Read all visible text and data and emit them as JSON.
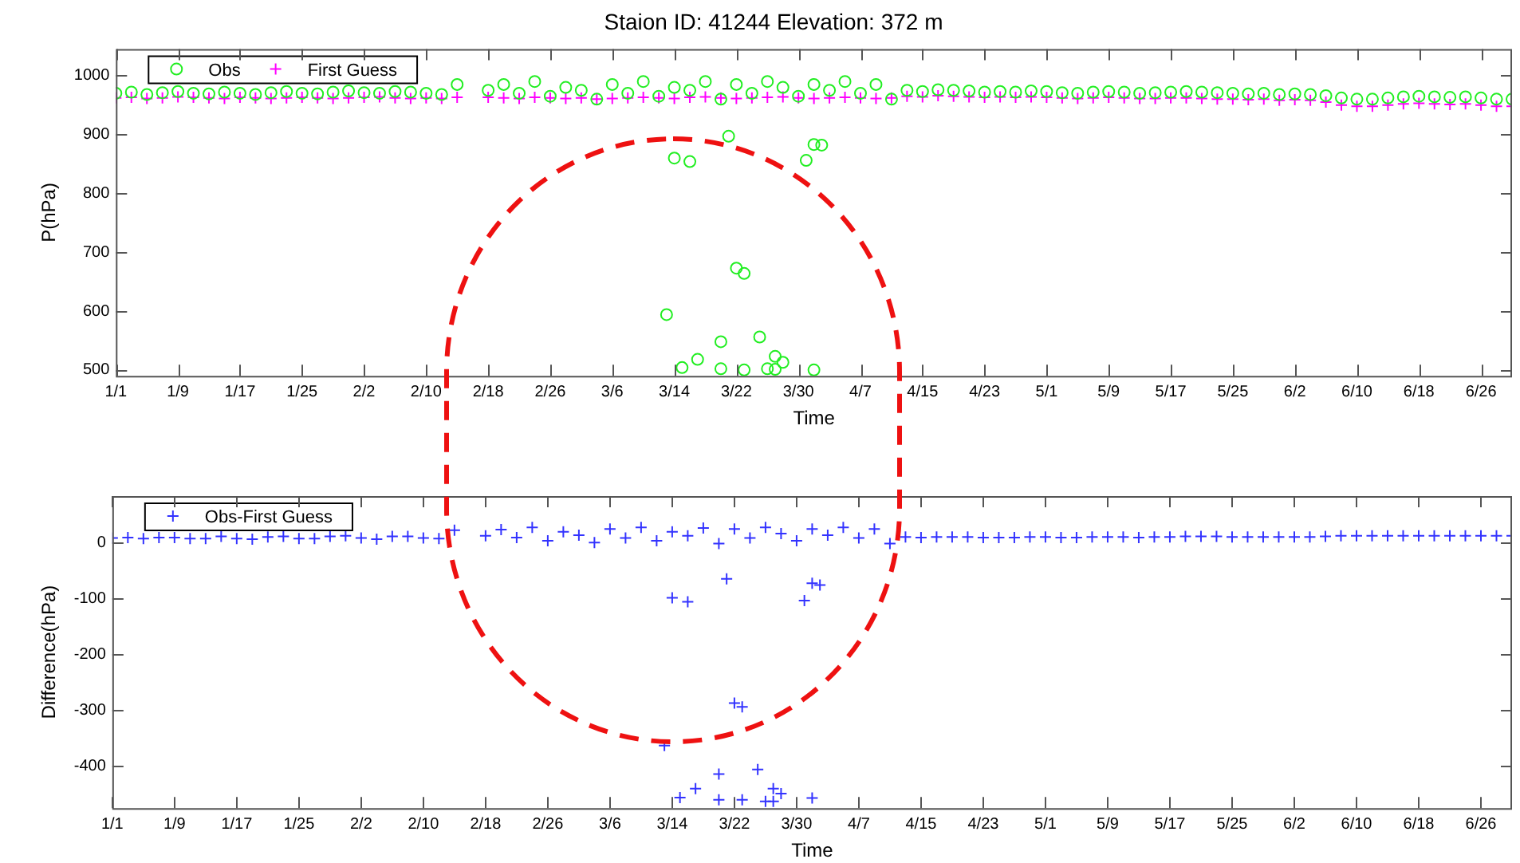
{
  "chart_data": [
    {
      "type": "scatter",
      "title": "Staion ID: 41244 Elevation: 372 m",
      "xlabel": "Time",
      "ylabel": "P(hPa)",
      "legend": "top left",
      "grid": false,
      "xlim": [
        "--01-01",
        "--06-30"
      ],
      "xticks": [
        {
          "value": "--01-01",
          "label": "1/1"
        },
        {
          "value": "--01-09",
          "label": "1/9"
        },
        {
          "value": "--01-17",
          "label": "1/17"
        },
        {
          "value": "--01-25",
          "label": "1/25"
        },
        {
          "value": "--02-02",
          "label": "2/2"
        },
        {
          "value": "--02-10",
          "label": "2/10"
        },
        {
          "value": "--02-18",
          "label": "2/18"
        },
        {
          "value": "--02-26",
          "label": "2/26"
        },
        {
          "value": "--03-06",
          "label": "3/6"
        },
        {
          "value": "--03-14",
          "label": "3/14"
        },
        {
          "value": "--03-22",
          "label": "3/22"
        },
        {
          "value": "--03-30",
          "label": "3/30"
        },
        {
          "value": "--04-07",
          "label": "4/7"
        },
        {
          "value": "--04-15",
          "label": "4/15"
        },
        {
          "value": "--04-23",
          "label": "4/23"
        },
        {
          "value": "--05-01",
          "label": "5/1"
        },
        {
          "value": "--05-09",
          "label": "5/9"
        },
        {
          "value": "--05-17",
          "label": "5/17"
        },
        {
          "value": "--05-25",
          "label": "5/25"
        },
        {
          "value": "--06-02",
          "label": "6/2"
        },
        {
          "value": "--06-10",
          "label": "6/10"
        },
        {
          "value": "--06-18",
          "label": "6/18"
        },
        {
          "value": "--06-26",
          "label": "6/26"
        }
      ],
      "ylim": [
        490,
        1045
      ],
      "yticks": [
        500,
        600,
        700,
        800,
        900,
        1000
      ],
      "series": [
        {
          "name": "Obs",
          "color": "#22ee22",
          "marker": "circle",
          "x": [
            "--01-01",
            "--01-03",
            "--01-05",
            "--01-07",
            "--01-09",
            "--01-11",
            "--01-13",
            "--01-15",
            "--01-17",
            "--01-19",
            "--01-21",
            "--01-23",
            "--01-25",
            "--01-27",
            "--01-29",
            "--01-31",
            "--02-02",
            "--02-04",
            "--02-06",
            "--02-08",
            "--02-10",
            "--02-12",
            "--02-14",
            "--02-18",
            "--02-20",
            "--02-22",
            "--02-24",
            "--02-26",
            "--02-28",
            "--03-02",
            "--03-04",
            "--03-06",
            "--03-08",
            "--03-10",
            "--03-12",
            "--03-14",
            "--03-16",
            "--03-18",
            "--03-20",
            "--03-22",
            "--03-24",
            "--03-26",
            "--03-28",
            "--03-30",
            "--04-01",
            "--04-03",
            "--04-05",
            "--04-07",
            "--04-09",
            "--04-11",
            "--04-13",
            "--04-15",
            "--04-17",
            "--04-19",
            "--04-21",
            "--04-23",
            "--04-25",
            "--04-27",
            "--04-29",
            "--05-01",
            "--05-03",
            "--05-05",
            "--05-07",
            "--05-09",
            "--05-11",
            "--05-13",
            "--05-15",
            "--05-17",
            "--05-19",
            "--05-21",
            "--05-23",
            "--05-25",
            "--05-27",
            "--05-29",
            "--05-31",
            "--06-02",
            "--06-04",
            "--06-06",
            "--06-08",
            "--06-10",
            "--06-12",
            "--06-14",
            "--06-16",
            "--06-18",
            "--06-20",
            "--06-22",
            "--06-24",
            "--06-26",
            "--06-28",
            "--06-30",
            "--03-14",
            "--03-16",
            "--03-21",
            "--03-31",
            "--04-01",
            "--04-02",
            "--03-22",
            "--03-23",
            "--03-13",
            "--03-20",
            "--03-25",
            "--03-15",
            "--03-17",
            "--03-20",
            "--03-23",
            "--03-26",
            "--03-27",
            "--03-27",
            "--03-28",
            "--04-01"
          ],
          "values": [
            970,
            972,
            968,
            971,
            973,
            970,
            969,
            972,
            970,
            968,
            971,
            973,
            970,
            969,
            972,
            974,
            971,
            970,
            973,
            972,
            970,
            968,
            985,
            975,
            985,
            970,
            990,
            965,
            980,
            975,
            960,
            985,
            970,
            990,
            965,
            980,
            975,
            990,
            960,
            985,
            970,
            990,
            980,
            965,
            985,
            975,
            990,
            970,
            985,
            960,
            975,
            973,
            976,
            975,
            974,
            972,
            973,
            972,
            974,
            973,
            971,
            970,
            972,
            973,
            972,
            970,
            971,
            972,
            973,
            972,
            971,
            970,
            969,
            970,
            968,
            969,
            968,
            966,
            962,
            960,
            960,
            962,
            964,
            965,
            964,
            963,
            964,
            962,
            960,
            960,
            860,
            854,
            897,
            856,
            883,
            882,
            673,
            664,
            594,
            548,
            556,
            504,
            518,
            502,
            500,
            502,
            501,
            523,
            513,
            500
          ]
        },
        {
          "name": "First Guess",
          "color": "#ff00ff",
          "marker": "cross",
          "x": [
            "--01-01",
            "--01-03",
            "--01-05",
            "--01-07",
            "--01-09",
            "--01-11",
            "--01-13",
            "--01-15",
            "--01-17",
            "--01-19",
            "--01-21",
            "--01-23",
            "--01-25",
            "--01-27",
            "--01-29",
            "--01-31",
            "--02-02",
            "--02-04",
            "--02-06",
            "--02-08",
            "--02-10",
            "--02-12",
            "--02-14",
            "--02-18",
            "--02-20",
            "--02-22",
            "--02-24",
            "--02-26",
            "--02-28",
            "--03-02",
            "--03-04",
            "--03-06",
            "--03-08",
            "--03-10",
            "--03-12",
            "--03-14",
            "--03-16",
            "--03-18",
            "--03-20",
            "--03-22",
            "--03-24",
            "--03-26",
            "--03-28",
            "--03-30",
            "--04-01",
            "--04-03",
            "--04-05",
            "--04-07",
            "--04-09",
            "--04-11",
            "--04-13",
            "--04-15",
            "--04-17",
            "--04-19",
            "--04-21",
            "--04-23",
            "--04-25",
            "--04-27",
            "--04-29",
            "--05-01",
            "--05-03",
            "--05-05",
            "--05-07",
            "--05-09",
            "--05-11",
            "--05-13",
            "--05-15",
            "--05-17",
            "--05-19",
            "--05-21",
            "--05-23",
            "--05-25",
            "--05-27",
            "--05-29",
            "--05-31",
            "--06-02",
            "--06-04",
            "--06-06",
            "--06-08",
            "--06-10",
            "--06-12",
            "--06-14",
            "--06-16",
            "--06-18",
            "--06-20",
            "--06-22",
            "--06-24",
            "--06-26",
            "--06-28",
            "--06-30"
          ],
          "values": [
            962,
            963,
            961,
            962,
            964,
            963,
            962,
            961,
            963,
            962,
            961,
            962,
            963,
            962,
            961,
            962,
            963,
            964,
            962,
            961,
            962,
            961,
            963,
            963,
            962,
            961,
            963,
            962,
            961,
            962,
            960,
            961,
            962,
            963,
            962,
            961,
            963,
            964,
            962,
            961,
            962,
            963,
            964,
            962,
            961,
            962,
            963,
            962,
            961,
            962,
            965,
            964,
            966,
            965,
            964,
            963,
            964,
            963,
            964,
            963,
            962,
            961,
            962,
            963,
            962,
            961,
            961,
            962,
            962,
            961,
            960,
            960,
            959,
            960,
            958,
            959,
            958,
            955,
            950,
            948,
            948,
            950,
            952,
            953,
            952,
            951,
            952,
            950,
            948,
            948
          ]
        }
      ]
    },
    {
      "type": "scatter",
      "xlabel": "Time",
      "ylabel": "Difference(hPa)",
      "legend": "top left",
      "grid": false,
      "xlim": [
        "--01-01",
        "--06-30"
      ],
      "xticks": [
        {
          "value": "--01-01",
          "label": "1/1"
        },
        {
          "value": "--01-09",
          "label": "1/9"
        },
        {
          "value": "--01-17",
          "label": "1/17"
        },
        {
          "value": "--01-25",
          "label": "1/25"
        },
        {
          "value": "--02-02",
          "label": "2/2"
        },
        {
          "value": "--02-10",
          "label": "2/10"
        },
        {
          "value": "--02-18",
          "label": "2/18"
        },
        {
          "value": "--02-26",
          "label": "2/26"
        },
        {
          "value": "--03-06",
          "label": "3/6"
        },
        {
          "value": "--03-14",
          "label": "3/14"
        },
        {
          "value": "--03-22",
          "label": "3/22"
        },
        {
          "value": "--03-30",
          "label": "3/30"
        },
        {
          "value": "--04-07",
          "label": "4/7"
        },
        {
          "value": "--04-15",
          "label": "4/15"
        },
        {
          "value": "--04-23",
          "label": "4/23"
        },
        {
          "value": "--05-01",
          "label": "5/1"
        },
        {
          "value": "--05-09",
          "label": "5/9"
        },
        {
          "value": "--05-17",
          "label": "5/17"
        },
        {
          "value": "--05-25",
          "label": "5/25"
        },
        {
          "value": "--06-02",
          "label": "6/2"
        },
        {
          "value": "--06-10",
          "label": "6/10"
        },
        {
          "value": "--06-18",
          "label": "6/18"
        },
        {
          "value": "--06-26",
          "label": "6/26"
        }
      ],
      "ylim": [
        -475,
        83
      ],
      "yticks": [
        -400,
        -300,
        -200,
        -100,
        0
      ],
      "series": [
        {
          "name": "Obs-First Guess",
          "color": "#3333ff",
          "marker": "cross",
          "x": [
            "--01-01",
            "--01-03",
            "--01-05",
            "--01-07",
            "--01-09",
            "--01-11",
            "--01-13",
            "--01-15",
            "--01-17",
            "--01-19",
            "--01-21",
            "--01-23",
            "--01-25",
            "--01-27",
            "--01-29",
            "--01-31",
            "--02-02",
            "--02-04",
            "--02-06",
            "--02-08",
            "--02-10",
            "--02-12",
            "--02-14",
            "--02-18",
            "--02-20",
            "--02-22",
            "--02-24",
            "--02-26",
            "--02-28",
            "--03-02",
            "--03-04",
            "--03-06",
            "--03-08",
            "--03-10",
            "--03-12",
            "--03-14",
            "--03-16",
            "--03-18",
            "--03-20",
            "--03-22",
            "--03-24",
            "--03-26",
            "--03-28",
            "--03-30",
            "--04-01",
            "--04-03",
            "--04-05",
            "--04-07",
            "--04-09",
            "--04-11",
            "--04-13",
            "--04-15",
            "--04-17",
            "--04-19",
            "--04-21",
            "--04-23",
            "--04-25",
            "--04-27",
            "--04-29",
            "--05-01",
            "--05-03",
            "--05-05",
            "--05-07",
            "--05-09",
            "--05-11",
            "--05-13",
            "--05-15",
            "--05-17",
            "--05-19",
            "--05-21",
            "--05-23",
            "--05-25",
            "--05-27",
            "--05-29",
            "--05-31",
            "--06-02",
            "--06-04",
            "--06-06",
            "--06-08",
            "--06-10",
            "--06-12",
            "--06-14",
            "--06-16",
            "--06-18",
            "--06-20",
            "--06-22",
            "--06-24",
            "--06-26",
            "--06-28",
            "--06-30",
            "--03-14",
            "--03-16",
            "--03-21",
            "--03-31",
            "--04-01",
            "--04-02",
            "--03-22",
            "--03-23",
            "--03-13",
            "--03-20",
            "--03-25",
            "--03-15",
            "--03-17",
            "--03-20",
            "--03-23",
            "--03-26",
            "--03-27",
            "--03-27",
            "--03-28",
            "--04-01"
          ],
          "values": [
            8,
            9,
            7,
            9,
            9,
            7,
            7,
            11,
            7,
            6,
            10,
            11,
            7,
            7,
            11,
            12,
            8,
            6,
            11,
            11,
            8,
            7,
            22,
            12,
            23,
            9,
            27,
            3,
            19,
            13,
            0,
            24,
            8,
            27,
            3,
            19,
            12,
            26,
            -2,
            24,
            8,
            27,
            16,
            3,
            24,
            13,
            27,
            8,
            24,
            -2,
            10,
            9,
            10,
            10,
            10,
            9,
            9,
            9,
            10,
            10,
            9,
            9,
            10,
            10,
            10,
            9,
            10,
            10,
            11,
            11,
            11,
            10,
            10,
            10,
            10,
            10,
            10,
            11,
            12,
            12,
            12,
            12,
            12,
            12,
            12,
            12,
            12,
            12,
            12,
            12,
            -99,
            -106,
            -65,
            -104,
            -73,
            -76,
            -287,
            -294,
            -363,
            -414,
            -406,
            -456,
            -440,
            -460,
            -460,
            -463,
            -463,
            -440,
            -449,
            -457
          ]
        }
      ]
    }
  ]
}
